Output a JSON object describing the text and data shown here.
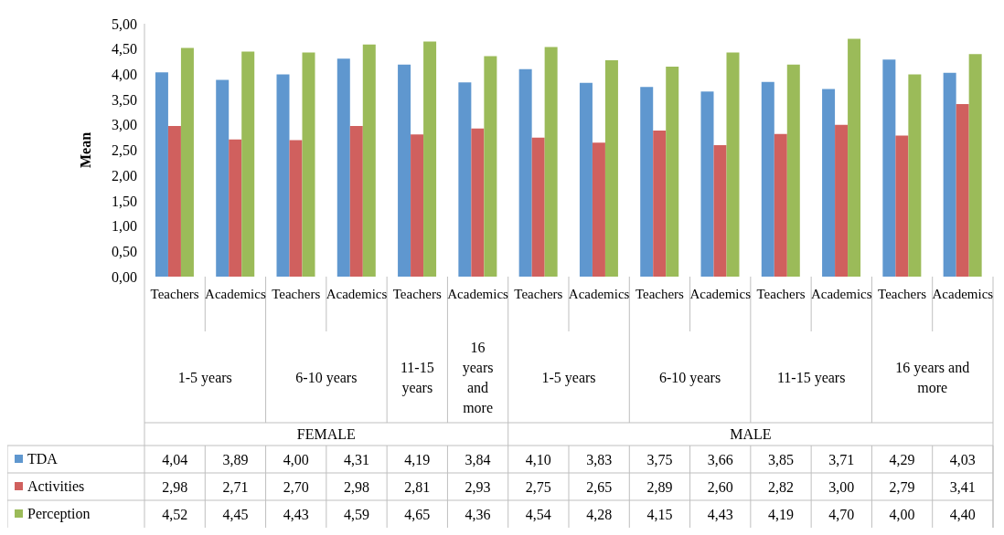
{
  "chart_data": {
    "type": "bar",
    "ylabel": "Mean",
    "categories": [
      "Teachers",
      "Academics",
      "Teachers",
      "Academics",
      "Teachers",
      "Academics",
      "Teachers",
      "Academics",
      "Teachers",
      "Academics",
      "Teachers",
      "Academics",
      "Teachers",
      "Academics"
    ],
    "series": [
      {
        "name": "TDA",
        "color": "#5f97cf",
        "values": [
          4.04,
          3.89,
          4.0,
          4.31,
          4.19,
          3.84,
          4.1,
          3.83,
          3.75,
          3.66,
          3.85,
          3.71,
          4.29,
          4.03
        ],
        "value_labels": [
          "4,04",
          "3,89",
          "4,00",
          "4,31",
          "4,19",
          "3,84",
          "4,10",
          "3,83",
          "3,75",
          "3,66",
          "3,85",
          "3,71",
          "4,29",
          "4,03"
        ]
      },
      {
        "name": "Activities",
        "color": "#d0605e",
        "values": [
          2.98,
          2.71,
          2.7,
          2.98,
          2.81,
          2.93,
          2.75,
          2.65,
          2.89,
          2.6,
          2.82,
          3.0,
          2.79,
          3.41
        ],
        "value_labels": [
          "2,98",
          "2,71",
          "2,70",
          "2,98",
          "2,81",
          "2,93",
          "2,75",
          "2,65",
          "2,89",
          "2,60",
          "2,82",
          "3,00",
          "2,79",
          "3,41"
        ]
      },
      {
        "name": "Perception",
        "color": "#9bbb59",
        "values": [
          4.52,
          4.45,
          4.43,
          4.59,
          4.65,
          4.36,
          4.54,
          4.28,
          4.15,
          4.43,
          4.19,
          4.7,
          4.0,
          4.4
        ],
        "value_labels": [
          "4,52",
          "4,45",
          "4,43",
          "4,59",
          "4,65",
          "4,36",
          "4,54",
          "4,28",
          "4,15",
          "4,43",
          "4,19",
          "4,70",
          "4,00",
          "4,40"
        ]
      }
    ],
    "ylim": [
      0,
      5
    ],
    "yticks": [
      {
        "value": 0,
        "label": "0,00"
      },
      {
        "value": 0.5,
        "label": "0,50"
      },
      {
        "value": 1,
        "label": "1,00"
      },
      {
        "value": 1.5,
        "label": "1,50"
      },
      {
        "value": 2,
        "label": "2,00"
      },
      {
        "value": 2.5,
        "label": "2,50"
      },
      {
        "value": 3,
        "label": "3,00"
      },
      {
        "value": 3.5,
        "label": "3,50"
      },
      {
        "value": 4,
        "label": "4,00"
      },
      {
        "value": 4.5,
        "label": "4,50"
      },
      {
        "value": 5,
        "label": "5,00"
      }
    ],
    "legend": "bottom",
    "annotations": [
      "1-5 years",
      "6-10 years",
      "11-15 years",
      "16 years and more",
      "1-5 years",
      "6-10 years",
      "11-15 years",
      "16 years and more",
      "FEMALE",
      "MALE"
    ]
  }
}
